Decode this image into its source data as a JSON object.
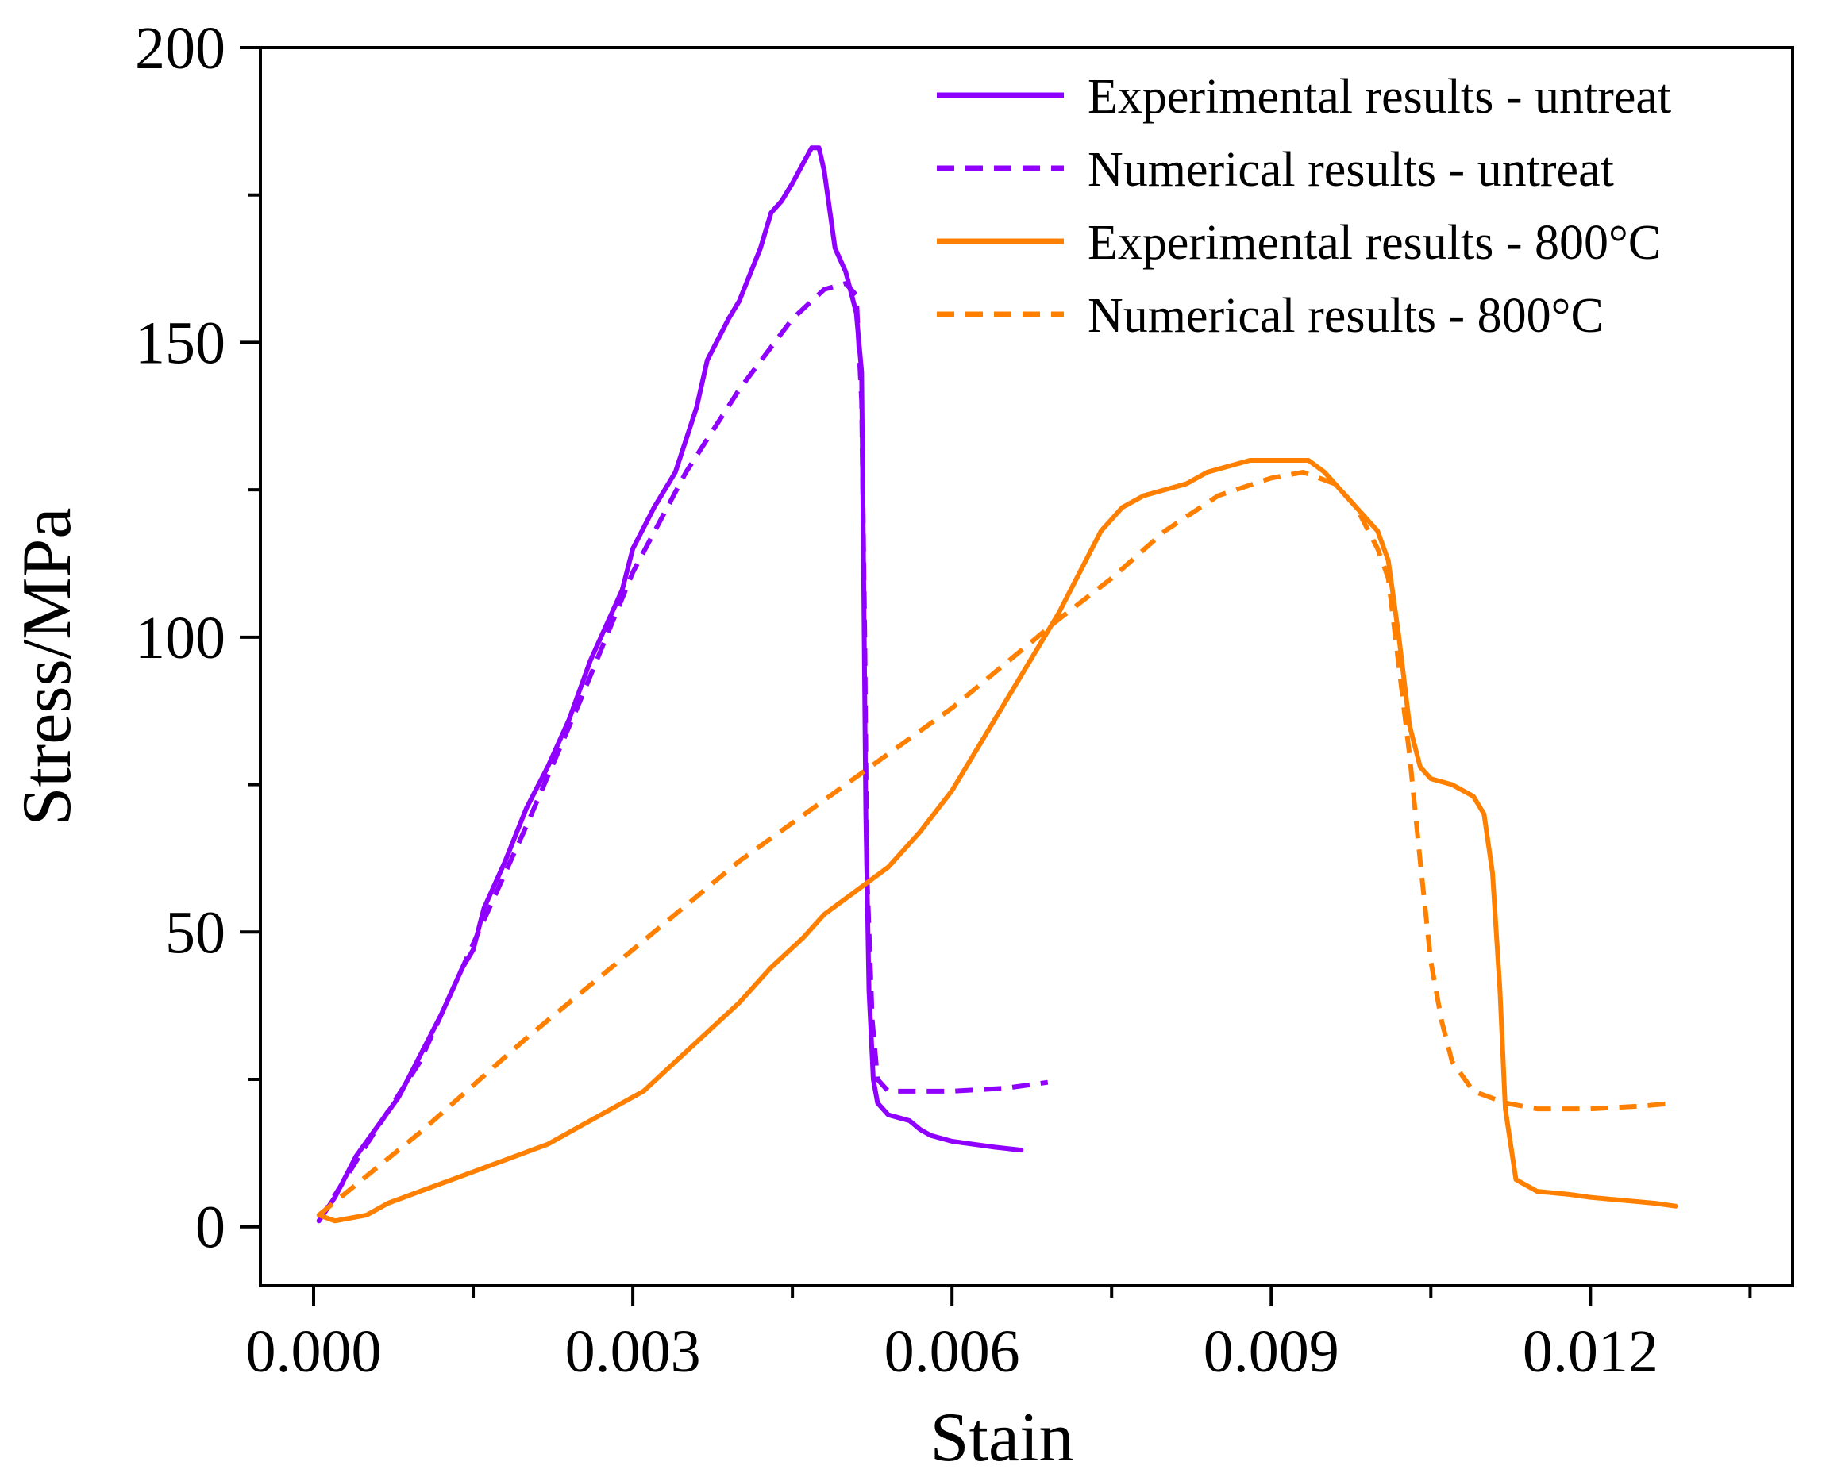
{
  "chart_data": {
    "type": "line",
    "title": "",
    "xlabel": "Stain",
    "ylabel": "Stress/MPa",
    "xlim": [
      -0.0005,
      0.0139
    ],
    "ylim": [
      -10,
      200
    ],
    "xticks": [
      0.0,
      0.003,
      0.006,
      0.009,
      0.012
    ],
    "xtick_labels": [
      "0.000",
      "0.003",
      "0.006",
      "0.009",
      "0.012"
    ],
    "yticks": [
      0,
      50,
      100,
      150,
      200
    ],
    "ytick_labels": [
      "0",
      "50",
      "100",
      "150",
      "200"
    ],
    "legend_position": "top-right",
    "series": [
      {
        "name": "Experimental results - untreat",
        "color": "#8f00ff",
        "dash": "solid",
        "points": [
          [
            5e-05,
            1
          ],
          [
            0.0002,
            5
          ],
          [
            0.0004,
            12
          ],
          [
            0.0006,
            17
          ],
          [
            0.0008,
            22
          ],
          [
            0.001,
            29
          ],
          [
            0.0012,
            36
          ],
          [
            0.0014,
            44
          ],
          [
            0.0015,
            47
          ],
          [
            0.0016,
            54
          ],
          [
            0.0018,
            62
          ],
          [
            0.002,
            71
          ],
          [
            0.0022,
            78
          ],
          [
            0.0024,
            86
          ],
          [
            0.0026,
            96
          ],
          [
            0.0027,
            100
          ],
          [
            0.0029,
            108
          ],
          [
            0.003,
            115
          ],
          [
            0.0032,
            122
          ],
          [
            0.0034,
            128
          ],
          [
            0.0036,
            139
          ],
          [
            0.0037,
            147
          ],
          [
            0.0039,
            154
          ],
          [
            0.004,
            157
          ],
          [
            0.0042,
            166
          ],
          [
            0.0043,
            172
          ],
          [
            0.0044,
            174
          ],
          [
            0.0045,
            177
          ],
          [
            0.00462,
            181
          ],
          [
            0.00468,
            183
          ],
          [
            0.00475,
            183
          ],
          [
            0.0048,
            179
          ],
          [
            0.0049,
            166
          ],
          [
            0.005,
            162
          ],
          [
            0.0051,
            155
          ],
          [
            0.00515,
            145
          ],
          [
            0.00517,
            110
          ],
          [
            0.00519,
            70
          ],
          [
            0.00522,
            40
          ],
          [
            0.00526,
            25
          ],
          [
            0.0053,
            21
          ],
          [
            0.0054,
            19
          ],
          [
            0.0055,
            18.5
          ],
          [
            0.0056,
            18
          ],
          [
            0.0057,
            16.5
          ],
          [
            0.0058,
            15.5
          ],
          [
            0.006,
            14.5
          ],
          [
            0.0062,
            14
          ],
          [
            0.0064,
            13.5
          ],
          [
            0.00665,
            13
          ]
        ]
      },
      {
        "name": "Numerical results - untreat",
        "color": "#8f00ff",
        "dash": "dashed",
        "points": [
          [
            5e-05,
            1
          ],
          [
            0.0005,
            14
          ],
          [
            0.001,
            28
          ],
          [
            0.0015,
            48
          ],
          [
            0.002,
            68
          ],
          [
            0.0025,
            89
          ],
          [
            0.003,
            111
          ],
          [
            0.0035,
            128
          ],
          [
            0.004,
            142
          ],
          [
            0.0045,
            154
          ],
          [
            0.0048,
            159
          ],
          [
            0.005,
            160
          ],
          [
            0.0051,
            158
          ],
          [
            0.00515,
            140
          ],
          [
            0.00518,
            100
          ],
          [
            0.0052,
            60
          ],
          [
            0.00525,
            35
          ],
          [
            0.0053,
            25
          ],
          [
            0.0054,
            23
          ],
          [
            0.006,
            23
          ],
          [
            0.0065,
            23.5
          ],
          [
            0.0069,
            24.5
          ]
        ]
      },
      {
        "name": "Experimental results - 800°C",
        "color": "#ff8000",
        "dash": "solid",
        "points": [
          [
            5e-05,
            2
          ],
          [
            0.0002,
            1
          ],
          [
            0.0005,
            2
          ],
          [
            0.0007,
            4
          ],
          [
            0.001,
            6
          ],
          [
            0.0013,
            8
          ],
          [
            0.0016,
            10
          ],
          [
            0.0019,
            12
          ],
          [
            0.0022,
            14
          ],
          [
            0.0025,
            17
          ],
          [
            0.0028,
            20
          ],
          [
            0.0031,
            23
          ],
          [
            0.0034,
            28
          ],
          [
            0.0037,
            33
          ],
          [
            0.004,
            38
          ],
          [
            0.0043,
            44
          ],
          [
            0.0046,
            49
          ],
          [
            0.0048,
            53
          ],
          [
            0.0051,
            57
          ],
          [
            0.0054,
            61
          ],
          [
            0.0057,
            67
          ],
          [
            0.006,
            74
          ],
          [
            0.0062,
            80
          ],
          [
            0.0064,
            86
          ],
          [
            0.0066,
            92
          ],
          [
            0.0068,
            98
          ],
          [
            0.007,
            104
          ],
          [
            0.0072,
            111
          ],
          [
            0.0074,
            118
          ],
          [
            0.0076,
            122
          ],
          [
            0.0078,
            124
          ],
          [
            0.008,
            125
          ],
          [
            0.0082,
            126
          ],
          [
            0.0084,
            128
          ],
          [
            0.0086,
            129
          ],
          [
            0.0088,
            130
          ],
          [
            0.009,
            130
          ],
          [
            0.0092,
            130
          ],
          [
            0.00935,
            130
          ],
          [
            0.0095,
            128
          ],
          [
            0.0097,
            124
          ],
          [
            0.0099,
            120
          ],
          [
            0.01,
            118
          ],
          [
            0.0101,
            113
          ],
          [
            0.0102,
            100
          ],
          [
            0.0103,
            85
          ],
          [
            0.0104,
            78
          ],
          [
            0.0105,
            76
          ],
          [
            0.0107,
            75
          ],
          [
            0.0109,
            73
          ],
          [
            0.011,
            70
          ],
          [
            0.01108,
            60
          ],
          [
            0.01115,
            40
          ],
          [
            0.0112,
            20
          ],
          [
            0.0113,
            8
          ],
          [
            0.0115,
            6
          ],
          [
            0.0118,
            5.5
          ],
          [
            0.012,
            5
          ],
          [
            0.0123,
            4.5
          ],
          [
            0.0126,
            4
          ],
          [
            0.0128,
            3.5
          ]
        ]
      },
      {
        "name": "Numerical results - 800°C",
        "color": "#ff8000",
        "dash": "dashed",
        "points": [
          [
            5e-05,
            2
          ],
          [
            0.001,
            16
          ],
          [
            0.002,
            32
          ],
          [
            0.003,
            47
          ],
          [
            0.004,
            62
          ],
          [
            0.005,
            75
          ],
          [
            0.006,
            88
          ],
          [
            0.007,
            103
          ],
          [
            0.0075,
            110
          ],
          [
            0.008,
            118
          ],
          [
            0.0085,
            124
          ],
          [
            0.009,
            127
          ],
          [
            0.0093,
            128
          ],
          [
            0.0096,
            126
          ],
          [
            0.0098,
            122
          ],
          [
            0.01,
            115
          ],
          [
            0.0101,
            110
          ],
          [
            0.0102,
            95
          ],
          [
            0.0103,
            80
          ],
          [
            0.0104,
            62
          ],
          [
            0.0105,
            45
          ],
          [
            0.0106,
            35
          ],
          [
            0.0107,
            28
          ],
          [
            0.0109,
            23
          ],
          [
            0.0112,
            21
          ],
          [
            0.0115,
            20
          ],
          [
            0.012,
            20
          ],
          [
            0.0125,
            20.5
          ],
          [
            0.0128,
            21
          ]
        ]
      }
    ]
  }
}
